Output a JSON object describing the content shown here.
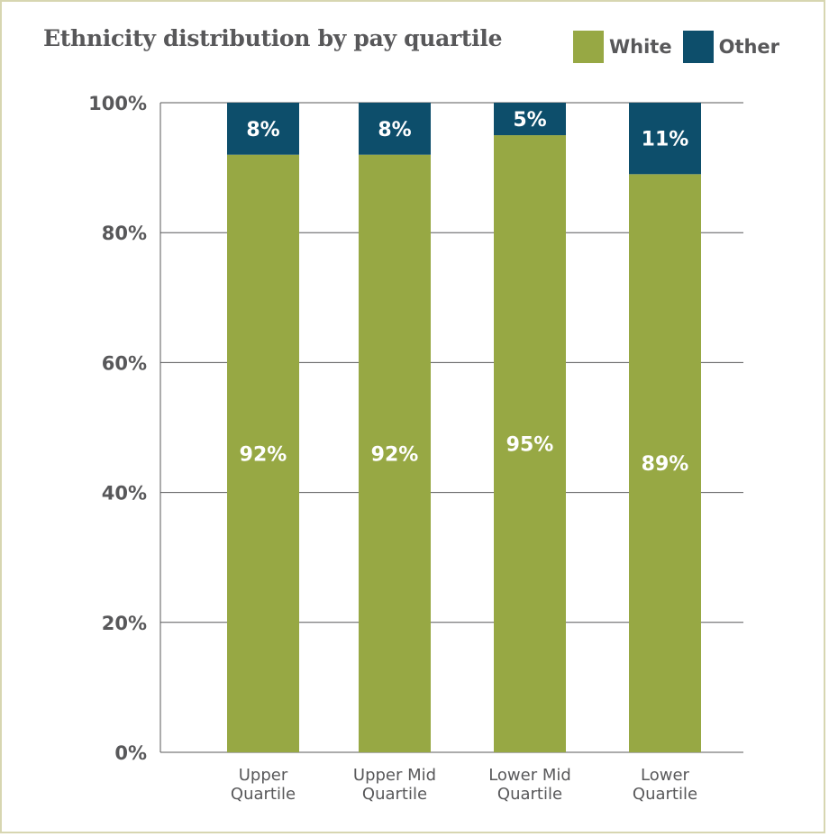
{
  "title": "Ethnicity distribution by pay quartile",
  "colors": {
    "white": "#97a844",
    "other": "#0d4e6b",
    "grid": "#58585a",
    "text": "#58585a"
  },
  "legend": [
    {
      "label": "White",
      "color": "#97a844"
    },
    {
      "label": "Other",
      "color": "#0d4e6b"
    }
  ],
  "chart_data": {
    "type": "bar",
    "stacked": true,
    "title": "Ethnicity distribution by pay quartile",
    "categories": [
      [
        "Upper",
        "Quartile"
      ],
      [
        "Upper Mid",
        "Quartile"
      ],
      [
        "Lower Mid",
        "Quartile"
      ],
      [
        "Lower",
        "Quartile"
      ]
    ],
    "series": [
      {
        "name": "White",
        "values": [
          92,
          92,
          95,
          89
        ],
        "labels": [
          "92%",
          "92%",
          "95%",
          "89%"
        ]
      },
      {
        "name": "Other",
        "values": [
          8,
          8,
          5,
          11
        ],
        "labels": [
          "8%",
          "8%",
          "5%",
          "11%"
        ]
      }
    ],
    "ylim": [
      0,
      100
    ],
    "yticks": [
      "0%",
      "20%",
      "40%",
      "60%",
      "80%",
      "100%"
    ],
    "grid": true,
    "legend_position": "top-right"
  }
}
